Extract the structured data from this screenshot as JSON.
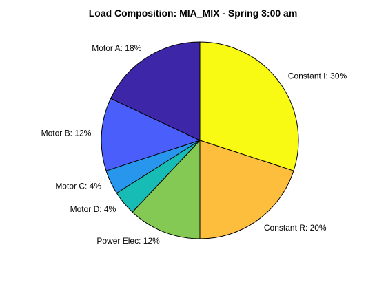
{
  "chart_data": {
    "type": "pie",
    "title": "Load Composition: MIA_MIX - Spring 3:00 am",
    "slices": [
      {
        "label": "Constant I: 30%",
        "value": 30,
        "color": "#f9fa14"
      },
      {
        "label": "Constant R: 20%",
        "value": 20,
        "color": "#fdbd3d"
      },
      {
        "label": "Power Elec: 12%",
        "value": 12,
        "color": "#83c954"
      },
      {
        "label": "Motor D: 4%",
        "value": 4,
        "color": "#17bcb5"
      },
      {
        "label": "Motor C: 4%",
        "value": 4,
        "color": "#2896ec"
      },
      {
        "label": "Motor B: 12%",
        "value": 12,
        "color": "#4a5efc"
      },
      {
        "label": "Motor A: 18%",
        "value": 18,
        "color": "#3e26a8"
      }
    ],
    "start_angle": "top",
    "direction": "clockwise",
    "legend": "none"
  }
}
